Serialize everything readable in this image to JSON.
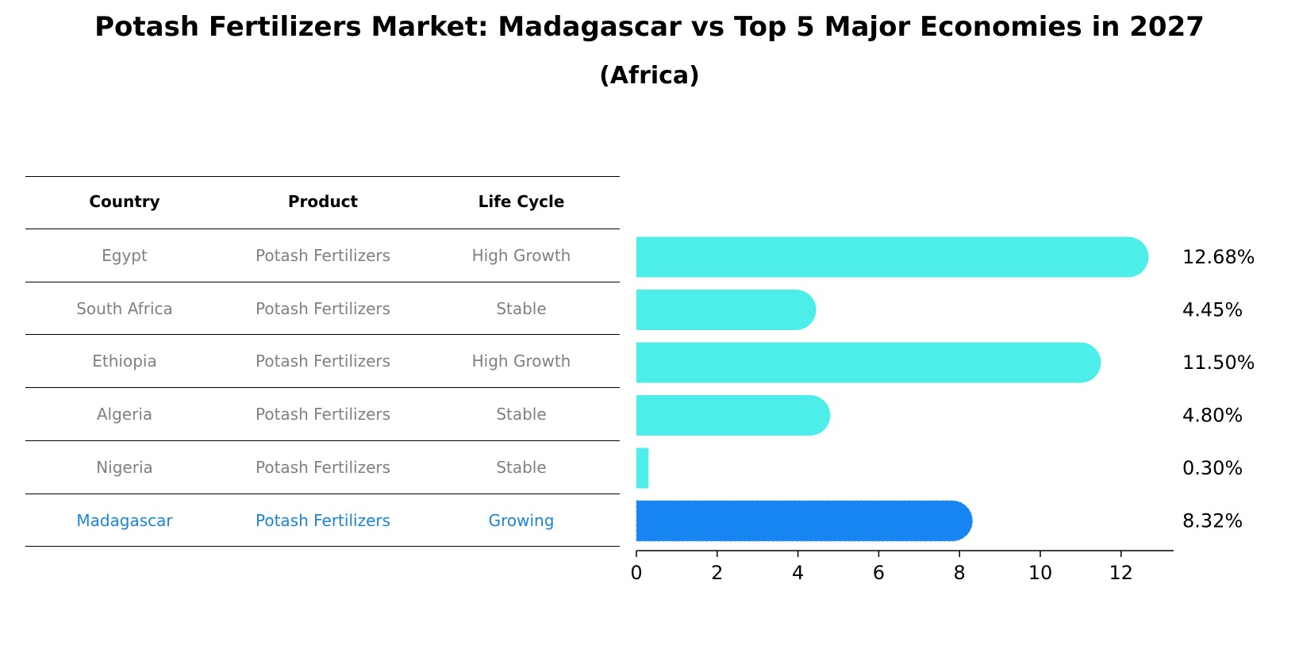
{
  "title": "Potash Fertilizers Market: Madagascar vs Top 5 Major Economies in 2027",
  "subtitle": "(Africa)",
  "table": {
    "headers": [
      "Country",
      "Product",
      "Life Cycle"
    ],
    "rows": [
      {
        "country": "Egypt",
        "product": "Potash Fertilizers",
        "life_cycle": "High Growth"
      },
      {
        "country": "South Africa",
        "product": "Potash Fertilizers",
        "life_cycle": "Stable"
      },
      {
        "country": "Ethiopia",
        "product": "Potash Fertilizers",
        "life_cycle": "High Growth"
      },
      {
        "country": "Algeria",
        "product": "Potash Fertilizers",
        "life_cycle": "Stable"
      },
      {
        "country": "Nigeria",
        "product": "Potash Fertilizers",
        "life_cycle": "Stable"
      },
      {
        "country": "Madagascar",
        "product": "Potash Fertilizers",
        "life_cycle": "Growing"
      }
    ]
  },
  "chart_data": {
    "type": "bar",
    "orientation": "horizontal",
    "categories": [
      "Egypt",
      "South Africa",
      "Ethiopia",
      "Algeria",
      "Nigeria",
      "Madagascar"
    ],
    "values": [
      12.68,
      4.45,
      11.5,
      4.8,
      0.3,
      8.32
    ],
    "value_labels": [
      "12.68%",
      "4.45%",
      "11.50%",
      "4.80%",
      "0.30%",
      "8.32%"
    ],
    "highlight": "Madagascar",
    "xticks": [
      0,
      2,
      4,
      6,
      8,
      10,
      12
    ],
    "xlim": [
      0,
      13.3
    ],
    "colors": {
      "default": "#4deeea",
      "highlight": "#1785f2"
    }
  }
}
